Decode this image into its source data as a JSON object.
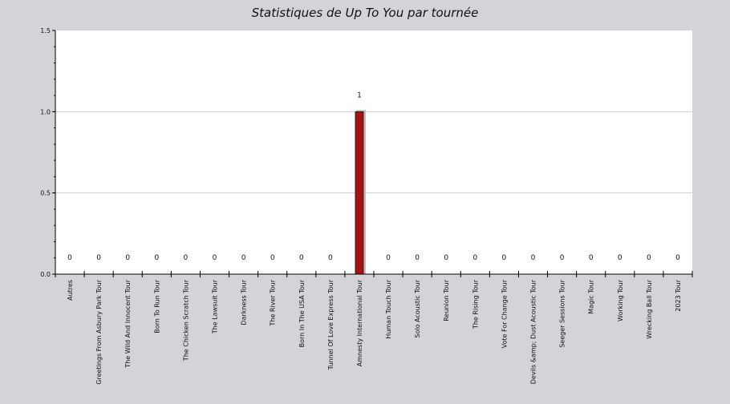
{
  "chart_data": {
    "type": "bar",
    "title": "Statistiques de Up To You par tournée",
    "xlabel": "",
    "ylabel": "",
    "ylim": [
      0,
      1.5
    ],
    "yticks": [
      "0.0",
      "0.5",
      "1.0",
      "1.5"
    ],
    "grid": true,
    "legend": "none",
    "categories": [
      "Autres",
      "Greetings From Asbury Park Tour",
      "The Wild And Innocent Tour",
      "Born To Run Tour",
      "The Chicken Scratch Tour",
      "The Lawsuit Tour",
      "Darkness Tour",
      "The River Tour",
      "Born In The USA Tour",
      "Tunnel Of Love Express Tour",
      "Amnesty International Tour",
      "Human Touch Tour",
      "Solo Acoustic Tour",
      "Reunion Tour",
      "The Rising Tour",
      "Vote For Change Tour",
      "Devils &amp; Dust Acoustic Tour",
      "Seeger Sessions Tour",
      "Magic Tour",
      "Working Tour",
      "Wrecking Ball Tour",
      "2023 Tour"
    ],
    "values": [
      0,
      0,
      0,
      0,
      0,
      0,
      0,
      0,
      0,
      0,
      1,
      0,
      0,
      0,
      0,
      0,
      0,
      0,
      0,
      0,
      0,
      0
    ],
    "value_labels": [
      "0",
      "0",
      "0",
      "0",
      "0",
      "0",
      "0",
      "0",
      "0",
      "0",
      "1",
      "0",
      "0",
      "0",
      "0",
      "0",
      "0",
      "0",
      "0",
      "0",
      "0",
      "0"
    ],
    "colors": {
      "background": "#d4d3d8",
      "plot_background": "#ffffff",
      "bar_fill": "#a31515",
      "bar_shadow": "#b8bcc4",
      "grid": "#cfcfcf",
      "axis": "#000000"
    }
  }
}
